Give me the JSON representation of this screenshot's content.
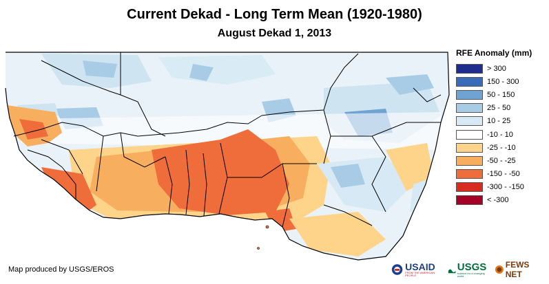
{
  "title": "Current Dekad - Long Term Mean (1920-1980)",
  "subtitle": "August Dekad 1, 2013",
  "legend": {
    "title": "RFE Anomaly (mm)",
    "items": [
      {
        "label": "> 300",
        "color": "#1f2e8c"
      },
      {
        "label": "150 - 300",
        "color": "#3a6bb8"
      },
      {
        "label": "50 - 150",
        "color": "#6fa3d2"
      },
      {
        "label": "25 - 50",
        "color": "#a9cce6"
      },
      {
        "label": "10 - 25",
        "color": "#d6e9f4"
      },
      {
        "label": "-10 - 10",
        "color": "#ffffff"
      },
      {
        "label": "-25 - -10",
        "color": "#fdd48a"
      },
      {
        "label": "-50 - -25",
        "color": "#f8ae5f"
      },
      {
        "label": "-150 - -50",
        "color": "#ee6d3a"
      },
      {
        "label": "-300 - -150",
        "color": "#d62d20"
      },
      {
        "label": "< -300",
        "color": "#a50026"
      }
    ]
  },
  "credit": "Map produced by USGS/EROS",
  "logos": {
    "usaid": "USAID",
    "usaid_tagline": "FROM THE AMERICAN PEOPLE",
    "usgs": "USGS",
    "usgs_tagline": "science for a changing world",
    "fewsnet": "FEWS NET"
  }
}
